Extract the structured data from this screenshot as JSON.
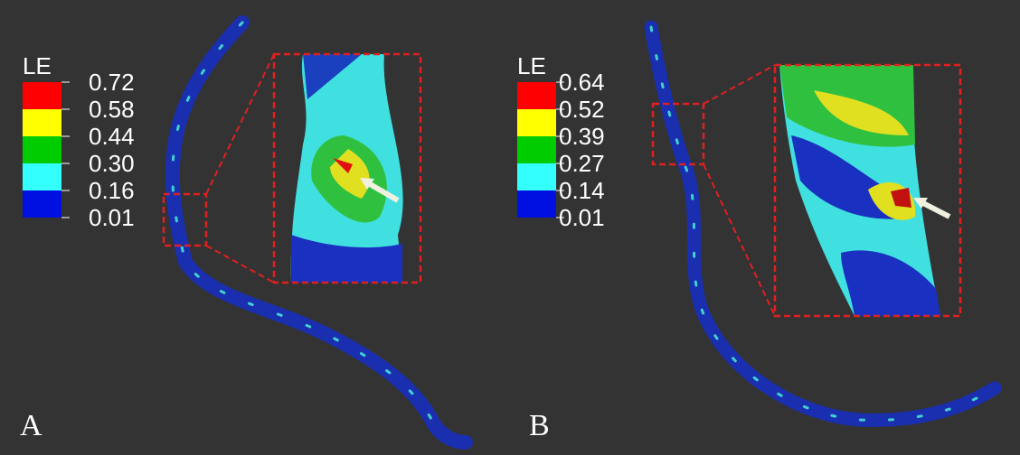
{
  "panels": [
    {
      "label": "A",
      "legend": {
        "title": "LE",
        "values": [
          "0.72",
          "0.58",
          "0.44",
          "0.30",
          "0.16",
          "0.01"
        ]
      }
    },
    {
      "label": "B",
      "legend": {
        "title": "LE",
        "values": [
          "0.64",
          "0.52",
          "0.39",
          "0.27",
          "0.14",
          "0.01"
        ]
      }
    }
  ]
}
